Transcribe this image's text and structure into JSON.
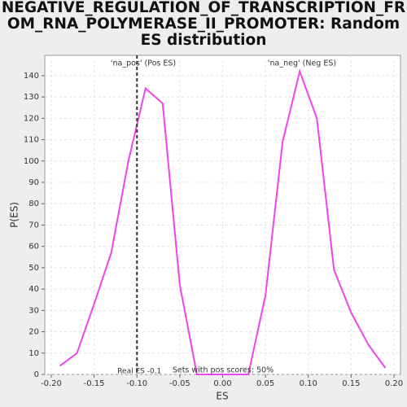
{
  "chart_data": {
    "type": "line",
    "title": "NEGATIVE_REGULATION_OF_TRANSCRIPTION_FROM_RNA_POLYMERASE_II_PROMOTER: Random ES distribution",
    "x_label": "ES",
    "y_label": "P(ES)",
    "x": [
      -0.19,
      -0.17,
      -0.15,
      -0.13,
      -0.11,
      -0.09,
      -0.07,
      -0.05,
      -0.03,
      -0.01,
      0.01,
      0.03,
      0.05,
      0.07,
      0.09,
      0.11,
      0.13,
      0.15,
      0.17,
      0.19
    ],
    "series": [
      {
        "color": "#ee44ee",
        "values": [
          4,
          10,
          33,
          57,
          100,
          134,
          127,
          42,
          0,
          0,
          0,
          0,
          37,
          109,
          142,
          120,
          49,
          29,
          14,
          3
        ]
      }
    ],
    "xlim": [
      -0.2076,
      0.2076
    ],
    "ylim": [
      0,
      149.5
    ],
    "xticks": [
      {
        "value": -0.2,
        "label": "-0.20"
      },
      {
        "value": -0.15,
        "label": "-0.15"
      },
      {
        "value": -0.1,
        "label": "-0.10"
      },
      {
        "value": -0.05,
        "label": "-0.05"
      },
      {
        "value": 0,
        "label": "0.00"
      },
      {
        "value": 0.05,
        "label": "0.05"
      },
      {
        "value": 0.1,
        "label": "0.10"
      },
      {
        "value": 0.15,
        "label": "0.15"
      },
      {
        "value": 0.2,
        "label": "0.20"
      }
    ],
    "yticks": [
      0,
      10,
      20,
      30,
      40,
      50,
      60,
      70,
      80,
      90,
      100,
      110,
      120,
      130,
      140
    ],
    "grid": true,
    "real_es": {
      "value": -0.1,
      "label": "Real ES -0.1"
    },
    "annotations": [
      {
        "text": "'na_pos' (Pos ES)",
        "color": "#dd3333"
      },
      {
        "text": "'na_neg' (Neg ES)",
        "color": "#3333dd"
      },
      {
        "text": "Sets with pos scores: 50%",
        "color": "#333333"
      }
    ]
  }
}
